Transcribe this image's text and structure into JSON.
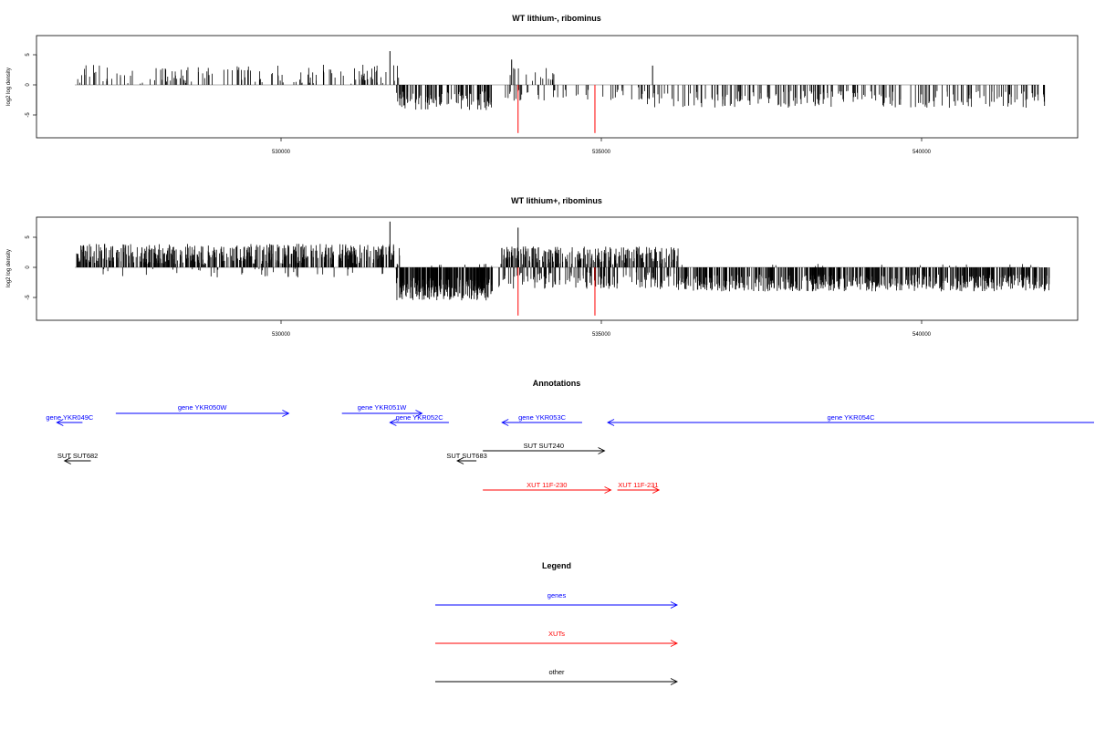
{
  "chart_data": [
    {
      "type": "bar",
      "title": "WT lithium-, ribominus",
      "ylabel": "log2 log density",
      "xlabel": "",
      "xlim": [
        526700,
        542000
      ],
      "ylim": [
        -8.5,
        8.5
      ],
      "xticks": [
        530000,
        535000,
        540000
      ],
      "yticks": [
        -5,
        0,
        5
      ],
      "density": "sparse",
      "segments": [
        {
          "range": [
            526800,
            531850
          ],
          "sign": 1,
          "mean": 1.8,
          "spread": 1.6,
          "count": 140,
          "sparse": true
        },
        {
          "range": [
            531800,
            533300
          ],
          "sign": -1,
          "mean": 2.6,
          "spread": 1.6,
          "count": 110,
          "sparse": true
        },
        {
          "range": [
            533500,
            534300
          ],
          "sign": -1,
          "mean": 1.6,
          "spread": 1.2,
          "count": 20,
          "sparse": true
        },
        {
          "range": [
            533500,
            534300
          ],
          "sign": 1,
          "mean": 1.6,
          "spread": 1.4,
          "count": 15,
          "sparse": true
        },
        {
          "range": [
            534300,
            535700
          ],
          "sign": -1,
          "mean": 1.4,
          "spread": 1.2,
          "count": 25,
          "sparse": true
        },
        {
          "range": [
            535700,
            542000
          ],
          "sign": -1,
          "mean": 2.4,
          "spread": 1.4,
          "count": 230,
          "sparse": true
        }
      ],
      "highlights": [
        {
          "x": 533700,
          "y": -8.0,
          "color": "#ff0000"
        },
        {
          "x": 534900,
          "y": -8.0,
          "color": "#ff0000"
        },
        {
          "x": 531700,
          "y": 5.6,
          "color": "#000000"
        },
        {
          "x": 533600,
          "y": 4.2,
          "color": "#000000"
        },
        {
          "x": 535800,
          "y": 3.2,
          "color": "#000000"
        }
      ]
    },
    {
      "type": "bar",
      "title": "WT lithium+, ribominus",
      "ylabel": "log2 log density",
      "xlabel": "",
      "xlim": [
        526700,
        542000
      ],
      "ylim": [
        -8.5,
        8.5
      ],
      "xticks": [
        530000,
        535000,
        540000
      ],
      "yticks": [
        -5,
        0,
        5
      ],
      "density": "dense",
      "segments": [
        {
          "range": [
            526800,
            531850
          ],
          "sign": 1,
          "mean": 2.2,
          "spread": 1.7,
          "count": 520
        },
        {
          "range": [
            526800,
            531850
          ],
          "sign": -1,
          "mean": 0.8,
          "spread": 0.9,
          "count": 40
        },
        {
          "range": [
            531800,
            533300
          ],
          "sign": -1,
          "mean": 3.6,
          "spread": 1.9,
          "count": 260
        },
        {
          "range": [
            531800,
            533300
          ],
          "sign": 1,
          "mean": 0.3,
          "spread": 0.3,
          "count": 10
        },
        {
          "range": [
            533400,
            536200
          ],
          "sign": 1,
          "mean": 2.0,
          "spread": 1.5,
          "count": 240
        },
        {
          "range": [
            533400,
            536200
          ],
          "sign": -1,
          "mean": 2.2,
          "spread": 1.4,
          "count": 160
        },
        {
          "range": [
            536200,
            542000
          ],
          "sign": -1,
          "mean": 2.6,
          "spread": 1.4,
          "count": 620
        },
        {
          "range": [
            536200,
            542000
          ],
          "sign": 1,
          "mean": 0.3,
          "spread": 0.3,
          "count": 15
        }
      ],
      "highlights": [
        {
          "x": 533700,
          "y": -8.0,
          "color": "#ff0000"
        },
        {
          "x": 534900,
          "y": -8.0,
          "color": "#ff0000"
        },
        {
          "x": 531700,
          "y": 7.6,
          "color": "#000000"
        },
        {
          "x": 533700,
          "y": 6.6,
          "color": "#000000"
        }
      ]
    }
  ],
  "annotations": {
    "title": "Annotations",
    "items": [
      {
        "label": "gene YKR049C",
        "color": "#0000ff",
        "row": 1,
        "dir": "left",
        "start": 526900,
        "end": 526500
      },
      {
        "label": "gene YKR050W",
        "color": "#0000ff",
        "row": 0,
        "dir": "right",
        "start": 527420,
        "end": 530120
      },
      {
        "label": "gene YKR051W",
        "color": "#0000ff",
        "row": 0,
        "dir": "right",
        "start": 530950,
        "end": 532200
      },
      {
        "label": "gene YKR052C",
        "color": "#0000ff",
        "row": 1,
        "dir": "left",
        "start": 532620,
        "end": 531700
      },
      {
        "label": "gene YKR053C",
        "color": "#0000ff",
        "row": 1,
        "dir": "left",
        "start": 534700,
        "end": 533450
      },
      {
        "label": "gene YKR054C",
        "color": "#0000ff",
        "row": 1,
        "dir": "left",
        "start": 542700,
        "end": 535100
      },
      {
        "label": "SUT SUT682",
        "color": "#000000",
        "row": 2,
        "dir": "left",
        "start": 527030,
        "end": 526620
      },
      {
        "label": "SUT SUT683",
        "color": "#000000",
        "row": 2,
        "dir": "left",
        "start": 533050,
        "end": 532750
      },
      {
        "label": "SUT SUT240",
        "color": "#000000",
        "row": 3,
        "dir": "right",
        "start": 533150,
        "end": 535050
      },
      {
        "label": "XUT 11F-230",
        "color": "#ff0000",
        "row": 4,
        "dir": "right",
        "start": 533150,
        "end": 535150
      },
      {
        "label": "XUT 11F-231",
        "color": "#ff0000",
        "row": 4,
        "dir": "right",
        "start": 535250,
        "end": 535900
      }
    ]
  },
  "legend": {
    "title": "Legend",
    "items": [
      {
        "label": "genes",
        "color": "#0000ff"
      },
      {
        "label": "XUTs",
        "color": "#ff0000"
      },
      {
        "label": "other",
        "color": "#000000"
      }
    ]
  }
}
